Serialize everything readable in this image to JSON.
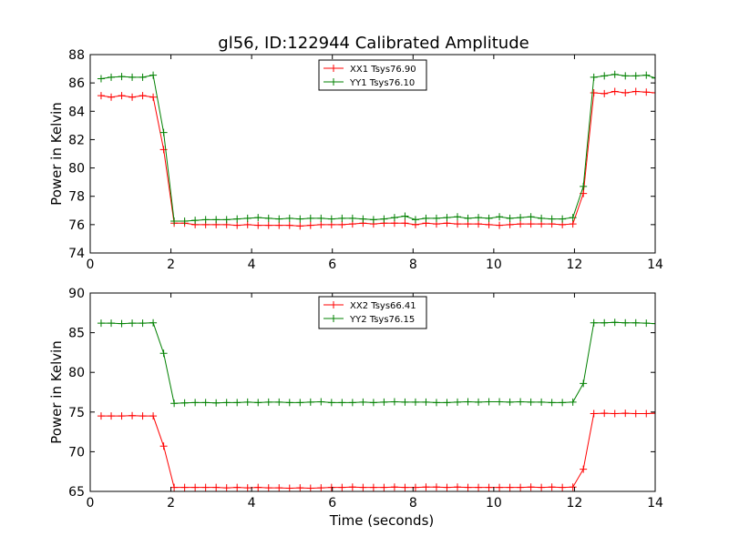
{
  "figure": {
    "title": "gl56, ID:122944 Calibrated Amplitude",
    "xlabel": "Time (seconds)"
  },
  "colors": {
    "red": "#ff0000",
    "green": "#008000"
  },
  "chart_data": [
    {
      "type": "line",
      "title": "",
      "xlabel": "",
      "ylabel": "Power in Kelvin",
      "xlim": [
        0,
        14
      ],
      "ylim": [
        74,
        88
      ],
      "xticks": [
        0,
        2,
        4,
        6,
        8,
        10,
        12,
        14
      ],
      "yticks": [
        74,
        76,
        78,
        80,
        82,
        84,
        86,
        88
      ],
      "grid": false,
      "legend_position": "top-center",
      "x": [
        0.27,
        0.52,
        0.78,
        1.04,
        1.3,
        1.56,
        1.82,
        2.08,
        2.34,
        2.6,
        2.86,
        3.12,
        3.38,
        3.64,
        3.9,
        4.16,
        4.42,
        4.68,
        4.94,
        5.2,
        5.46,
        5.72,
        5.98,
        6.24,
        6.5,
        6.76,
        7.02,
        7.28,
        7.54,
        7.8,
        8.06,
        8.32,
        8.58,
        8.84,
        9.1,
        9.36,
        9.62,
        9.88,
        10.14,
        10.4,
        10.66,
        10.92,
        11.18,
        11.44,
        11.7,
        11.96,
        12.22,
        12.48,
        12.74,
        13.0,
        13.26,
        13.52,
        13.78,
        14.0
      ],
      "series": [
        {
          "name": "XX1 Tsys76.90",
          "color": "#ff0000",
          "values": [
            85.1,
            85.0,
            85.1,
            85.0,
            85.1,
            85.0,
            81.3,
            76.1,
            76.1,
            76.0,
            76.0,
            76.0,
            76.0,
            75.95,
            76.0,
            75.95,
            75.95,
            75.95,
            75.95,
            75.9,
            75.95,
            76.0,
            76.0,
            76.0,
            76.05,
            76.1,
            76.05,
            76.1,
            76.1,
            76.1,
            76.0,
            76.1,
            76.05,
            76.1,
            76.05,
            76.05,
            76.05,
            76.0,
            75.95,
            76.0,
            76.05,
            76.05,
            76.05,
            76.05,
            76.0,
            76.05,
            78.2,
            85.3,
            85.25,
            85.4,
            85.3,
            85.4,
            85.35,
            85.3
          ]
        },
        {
          "name": "YY1 Tsys76.10",
          "color": "#008000",
          "values": [
            86.3,
            86.4,
            86.45,
            86.4,
            86.4,
            86.55,
            82.5,
            76.25,
            76.25,
            76.3,
            76.35,
            76.35,
            76.35,
            76.4,
            76.45,
            76.5,
            76.45,
            76.4,
            76.45,
            76.4,
            76.45,
            76.45,
            76.4,
            76.45,
            76.45,
            76.4,
            76.35,
            76.4,
            76.5,
            76.6,
            76.35,
            76.45,
            76.45,
            76.5,
            76.55,
            76.45,
            76.5,
            76.45,
            76.55,
            76.45,
            76.5,
            76.55,
            76.45,
            76.4,
            76.4,
            76.5,
            78.7,
            86.4,
            86.5,
            86.6,
            86.5,
            86.5,
            86.55,
            86.35
          ]
        }
      ]
    },
    {
      "type": "line",
      "title": "",
      "xlabel": "Time (seconds)",
      "ylabel": "Power in Kelvin",
      "xlim": [
        0,
        14
      ],
      "ylim": [
        65,
        90
      ],
      "xticks": [
        0,
        2,
        4,
        6,
        8,
        10,
        12,
        14
      ],
      "yticks": [
        65,
        70,
        75,
        80,
        85,
        90
      ],
      "grid": false,
      "legend_position": "top-center",
      "x": [
        0.27,
        0.52,
        0.78,
        1.04,
        1.3,
        1.56,
        1.82,
        2.08,
        2.34,
        2.6,
        2.86,
        3.12,
        3.38,
        3.64,
        3.9,
        4.16,
        4.42,
        4.68,
        4.94,
        5.2,
        5.46,
        5.72,
        5.98,
        6.24,
        6.5,
        6.76,
        7.02,
        7.28,
        7.54,
        7.8,
        8.06,
        8.32,
        8.58,
        8.84,
        9.1,
        9.36,
        9.62,
        9.88,
        10.14,
        10.4,
        10.66,
        10.92,
        11.18,
        11.44,
        11.7,
        11.96,
        12.22,
        12.48,
        12.74,
        13.0,
        13.26,
        13.52,
        13.78,
        14.0
      ],
      "series": [
        {
          "name": "XX2 Tsys66.41",
          "color": "#ff0000",
          "values": [
            74.5,
            74.5,
            74.5,
            74.55,
            74.5,
            74.5,
            70.7,
            65.5,
            65.5,
            65.5,
            65.5,
            65.5,
            65.45,
            65.5,
            65.45,
            65.5,
            65.45,
            65.45,
            65.4,
            65.45,
            65.4,
            65.45,
            65.5,
            65.5,
            65.55,
            65.5,
            65.5,
            65.5,
            65.55,
            65.5,
            65.5,
            65.55,
            65.55,
            65.5,
            65.55,
            65.5,
            65.5,
            65.5,
            65.5,
            65.5,
            65.5,
            65.55,
            65.5,
            65.55,
            65.5,
            65.55,
            67.8,
            74.8,
            74.85,
            74.8,
            74.85,
            74.8,
            74.8,
            74.85
          ]
        },
        {
          "name": "YY2 Tsys76.15",
          "color": "#008000",
          "values": [
            86.2,
            86.2,
            86.15,
            86.2,
            86.2,
            86.25,
            82.4,
            76.1,
            76.15,
            76.2,
            76.2,
            76.15,
            76.2,
            76.2,
            76.25,
            76.2,
            76.25,
            76.25,
            76.2,
            76.2,
            76.25,
            76.3,
            76.2,
            76.2,
            76.2,
            76.25,
            76.2,
            76.25,
            76.3,
            76.25,
            76.25,
            76.25,
            76.2,
            76.2,
            76.25,
            76.3,
            76.25,
            76.3,
            76.3,
            76.25,
            76.3,
            76.25,
            76.25,
            76.2,
            76.2,
            76.25,
            78.6,
            86.25,
            86.25,
            86.3,
            86.25,
            86.25,
            86.2,
            86.15
          ]
        }
      ]
    }
  ]
}
